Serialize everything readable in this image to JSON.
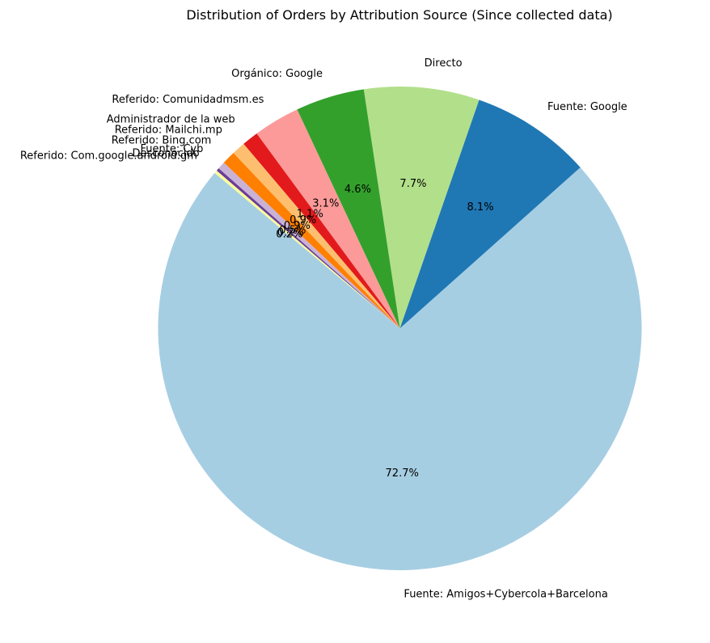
{
  "chart_data": {
    "type": "pie",
    "title": "Distribution of Orders by Attribution Source (Since collected data)",
    "start_angle_deg": 140,
    "direction": "counterclockwise",
    "slices": [
      {
        "label": "Fuente: Amigos+Cybercola+Barcelona",
        "value": 72.7,
        "pct_label": "72.7%",
        "color": "#a6cee3"
      },
      {
        "label": "Fuente: Google",
        "value": 8.1,
        "pct_label": "8.1%",
        "color": "#1f78b4"
      },
      {
        "label": "Directo",
        "value": 7.7,
        "pct_label": "7.7%",
        "color": "#b2df8a"
      },
      {
        "label": "Orgánico: Google",
        "value": 4.6,
        "pct_label": "4.6%",
        "color": "#33a02c"
      },
      {
        "label": "Referido: Comunidadmsm.es",
        "value": 3.1,
        "pct_label": "3.1%",
        "color": "#fb9a99"
      },
      {
        "label": "Administrador de la web",
        "value": 1.1,
        "pct_label": "1.1%",
        "color": "#e31a1c"
      },
      {
        "label": "Referido: Mailchi.mp",
        "value": 0.9,
        "pct_label": "0.9%",
        "color": "#fdbf6f"
      },
      {
        "label": "Referido: Bing.com",
        "value": 0.9,
        "pct_label": "0.9%",
        "color": "#ff7f00"
      },
      {
        "label": "Fuente: Cyb",
        "value": 0.5,
        "pct_label": "0.5%",
        "color": "#cab2d6"
      },
      {
        "label": "Desconocido",
        "value": 0.2,
        "pct_label": "0.2%",
        "color": "#6a3d9a"
      },
      {
        "label": "Referido: Com.google.android.gm",
        "value": 0.2,
        "pct_label": "0.2%",
        "color": "#ffff99"
      }
    ]
  }
}
